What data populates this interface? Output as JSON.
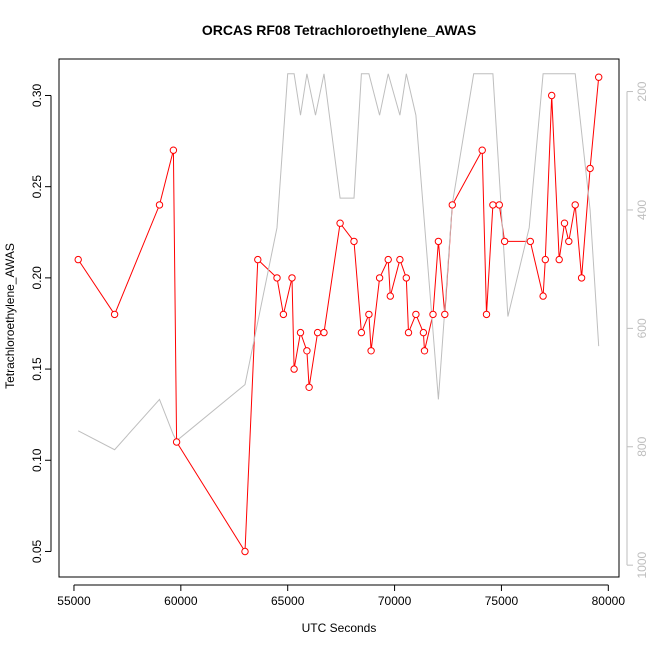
{
  "chart_data": {
    "type": "line",
    "title": "ORCAS RF08 Tetrachloroethylene_AWAS",
    "xlabel": "UTC Seconds",
    "ylabel": "Tetrachloroethylene_AWAS",
    "xlim": [
      54300,
      80500
    ],
    "ylim": [
      0.036,
      0.32
    ],
    "x_ticks": [
      55000,
      60000,
      65000,
      70000,
      75000,
      80000
    ],
    "y_ticks": [
      0.05,
      0.1,
      0.15,
      0.2,
      0.25,
      0.3
    ],
    "y_tick_labels": [
      "0.05",
      "0.10",
      "0.15",
      "0.20",
      "0.25",
      "0.30"
    ],
    "y2_ticks": [
      200,
      400,
      600,
      800,
      1000
    ],
    "y2lim": [
      1020,
      145
    ],
    "grid": false,
    "series": [
      {
        "color": "#ff0000",
        "axis": "left",
        "marker": "open-circle",
        "points": [
          [
            55200,
            0.21
          ],
          [
            56900,
            0.18
          ],
          [
            59000,
            0.24
          ],
          [
            59650,
            0.27
          ],
          [
            59800,
            0.11
          ],
          [
            63000,
            0.05
          ],
          [
            63600,
            0.21
          ],
          [
            64500,
            0.2
          ],
          [
            64800,
            0.18
          ],
          [
            65200,
            0.2
          ],
          [
            65300,
            0.15
          ],
          [
            65600,
            0.17
          ],
          [
            65900,
            0.16
          ],
          [
            66000,
            0.14
          ],
          [
            66400,
            0.17
          ],
          [
            66700,
            0.17
          ],
          [
            67450,
            0.23
          ],
          [
            68100,
            0.22
          ],
          [
            68450,
            0.17
          ],
          [
            68800,
            0.18
          ],
          [
            68900,
            0.16
          ],
          [
            69300,
            0.2
          ],
          [
            69700,
            0.21
          ],
          [
            69800,
            0.19
          ],
          [
            70250,
            0.21
          ],
          [
            70550,
            0.2
          ],
          [
            70650,
            0.17
          ],
          [
            71000,
            0.18
          ],
          [
            71350,
            0.17
          ],
          [
            71400,
            0.16
          ],
          [
            71800,
            0.18
          ],
          [
            72050,
            0.22
          ],
          [
            72350,
            0.18
          ],
          [
            72700,
            0.24
          ],
          [
            74100,
            0.27
          ],
          [
            74300,
            0.18
          ],
          [
            74600,
            0.24
          ],
          [
            74900,
            0.24
          ],
          [
            75150,
            0.22
          ],
          [
            76350,
            0.22
          ],
          [
            76950,
            0.19
          ],
          [
            77050,
            0.21
          ],
          [
            77350,
            0.3
          ],
          [
            77700,
            0.21
          ],
          [
            77950,
            0.23
          ],
          [
            78150,
            0.22
          ],
          [
            78450,
            0.24
          ],
          [
            78750,
            0.2
          ],
          [
            79150,
            0.26
          ],
          [
            79550,
            0.31
          ]
        ]
      },
      {
        "color": "#bebebe",
        "axis": "right",
        "marker": "none",
        "points": [
          [
            55200,
            773
          ],
          [
            56900,
            805
          ],
          [
            59000,
            720
          ],
          [
            59650,
            780
          ],
          [
            59800,
            790
          ],
          [
            63000,
            695
          ],
          [
            64500,
            430
          ],
          [
            65000,
            170
          ],
          [
            65300,
            170
          ],
          [
            65600,
            240
          ],
          [
            65900,
            170
          ],
          [
            66300,
            240
          ],
          [
            66700,
            170
          ],
          [
            67450,
            380
          ],
          [
            68100,
            380
          ],
          [
            68450,
            170
          ],
          [
            68800,
            170
          ],
          [
            69300,
            240
          ],
          [
            69700,
            170
          ],
          [
            70250,
            240
          ],
          [
            70550,
            170
          ],
          [
            71000,
            240
          ],
          [
            72050,
            720
          ],
          [
            72700,
            390
          ],
          [
            73700,
            170
          ],
          [
            74100,
            170
          ],
          [
            74300,
            170
          ],
          [
            74600,
            170
          ],
          [
            75300,
            580
          ],
          [
            76300,
            430
          ],
          [
            76950,
            170
          ],
          [
            77500,
            170
          ],
          [
            77950,
            170
          ],
          [
            78450,
            170
          ],
          [
            79150,
            400
          ],
          [
            79550,
            630
          ]
        ]
      }
    ]
  }
}
